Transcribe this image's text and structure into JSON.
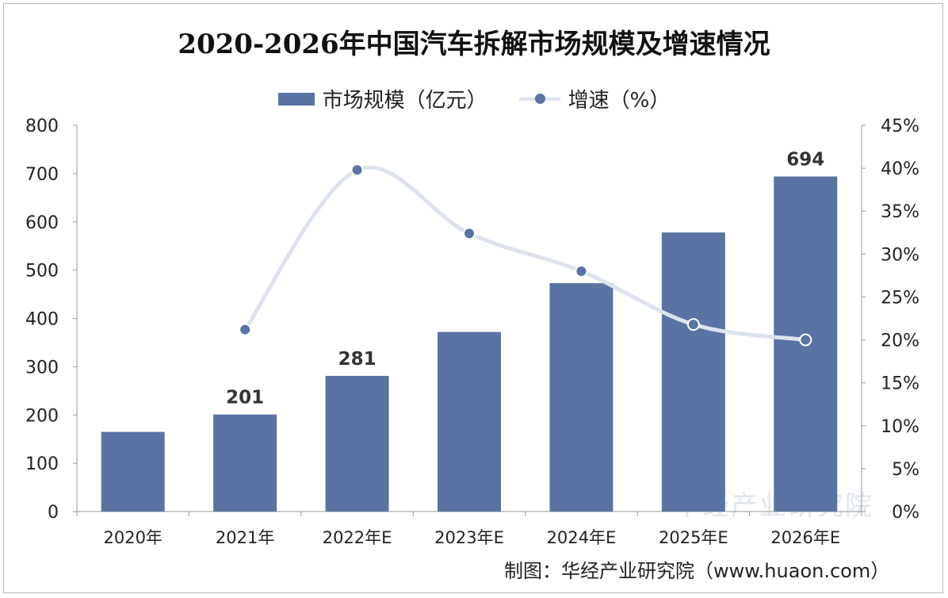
{
  "chart_data": {
    "type": "bar+line",
    "title": "2020-2026年中国汽车拆解市场规模及增速情况",
    "categories": [
      "2020年",
      "2021年",
      "2022年E",
      "2023年E",
      "2024年E",
      "2025年E",
      "2026年E"
    ],
    "series": [
      {
        "name": "市场规模（亿元）",
        "type": "bar",
        "axis": "left",
        "values": [
          165,
          201,
          281,
          372,
          473,
          578,
          694
        ],
        "data_labels": [
          null,
          "201",
          "281",
          null,
          null,
          null,
          "694"
        ]
      },
      {
        "name": "增速（%）",
        "type": "line",
        "axis": "right",
        "values": [
          null,
          21.2,
          39.8,
          32.4,
          28.0,
          21.8,
          20.0
        ]
      }
    ],
    "left_axis": {
      "ylim": [
        0,
        800
      ],
      "ticks": [
        "0",
        "100",
        "200",
        "300",
        "400",
        "500",
        "600",
        "700",
        "800"
      ]
    },
    "right_axis": {
      "ylim": [
        0,
        45
      ],
      "ticks": [
        "0%",
        "5%",
        "10%",
        "15%",
        "20%",
        "25%",
        "30%",
        "35%",
        "40%",
        "45%"
      ]
    },
    "legend": "top",
    "grid": false,
    "colors": {
      "bar": "#5b73a3",
      "line": "#dde3ee",
      "marker": "#5b73a3"
    }
  },
  "source": "制图：华经产业研究院（www.huaon.com）",
  "watermark": "华经产业研究院"
}
